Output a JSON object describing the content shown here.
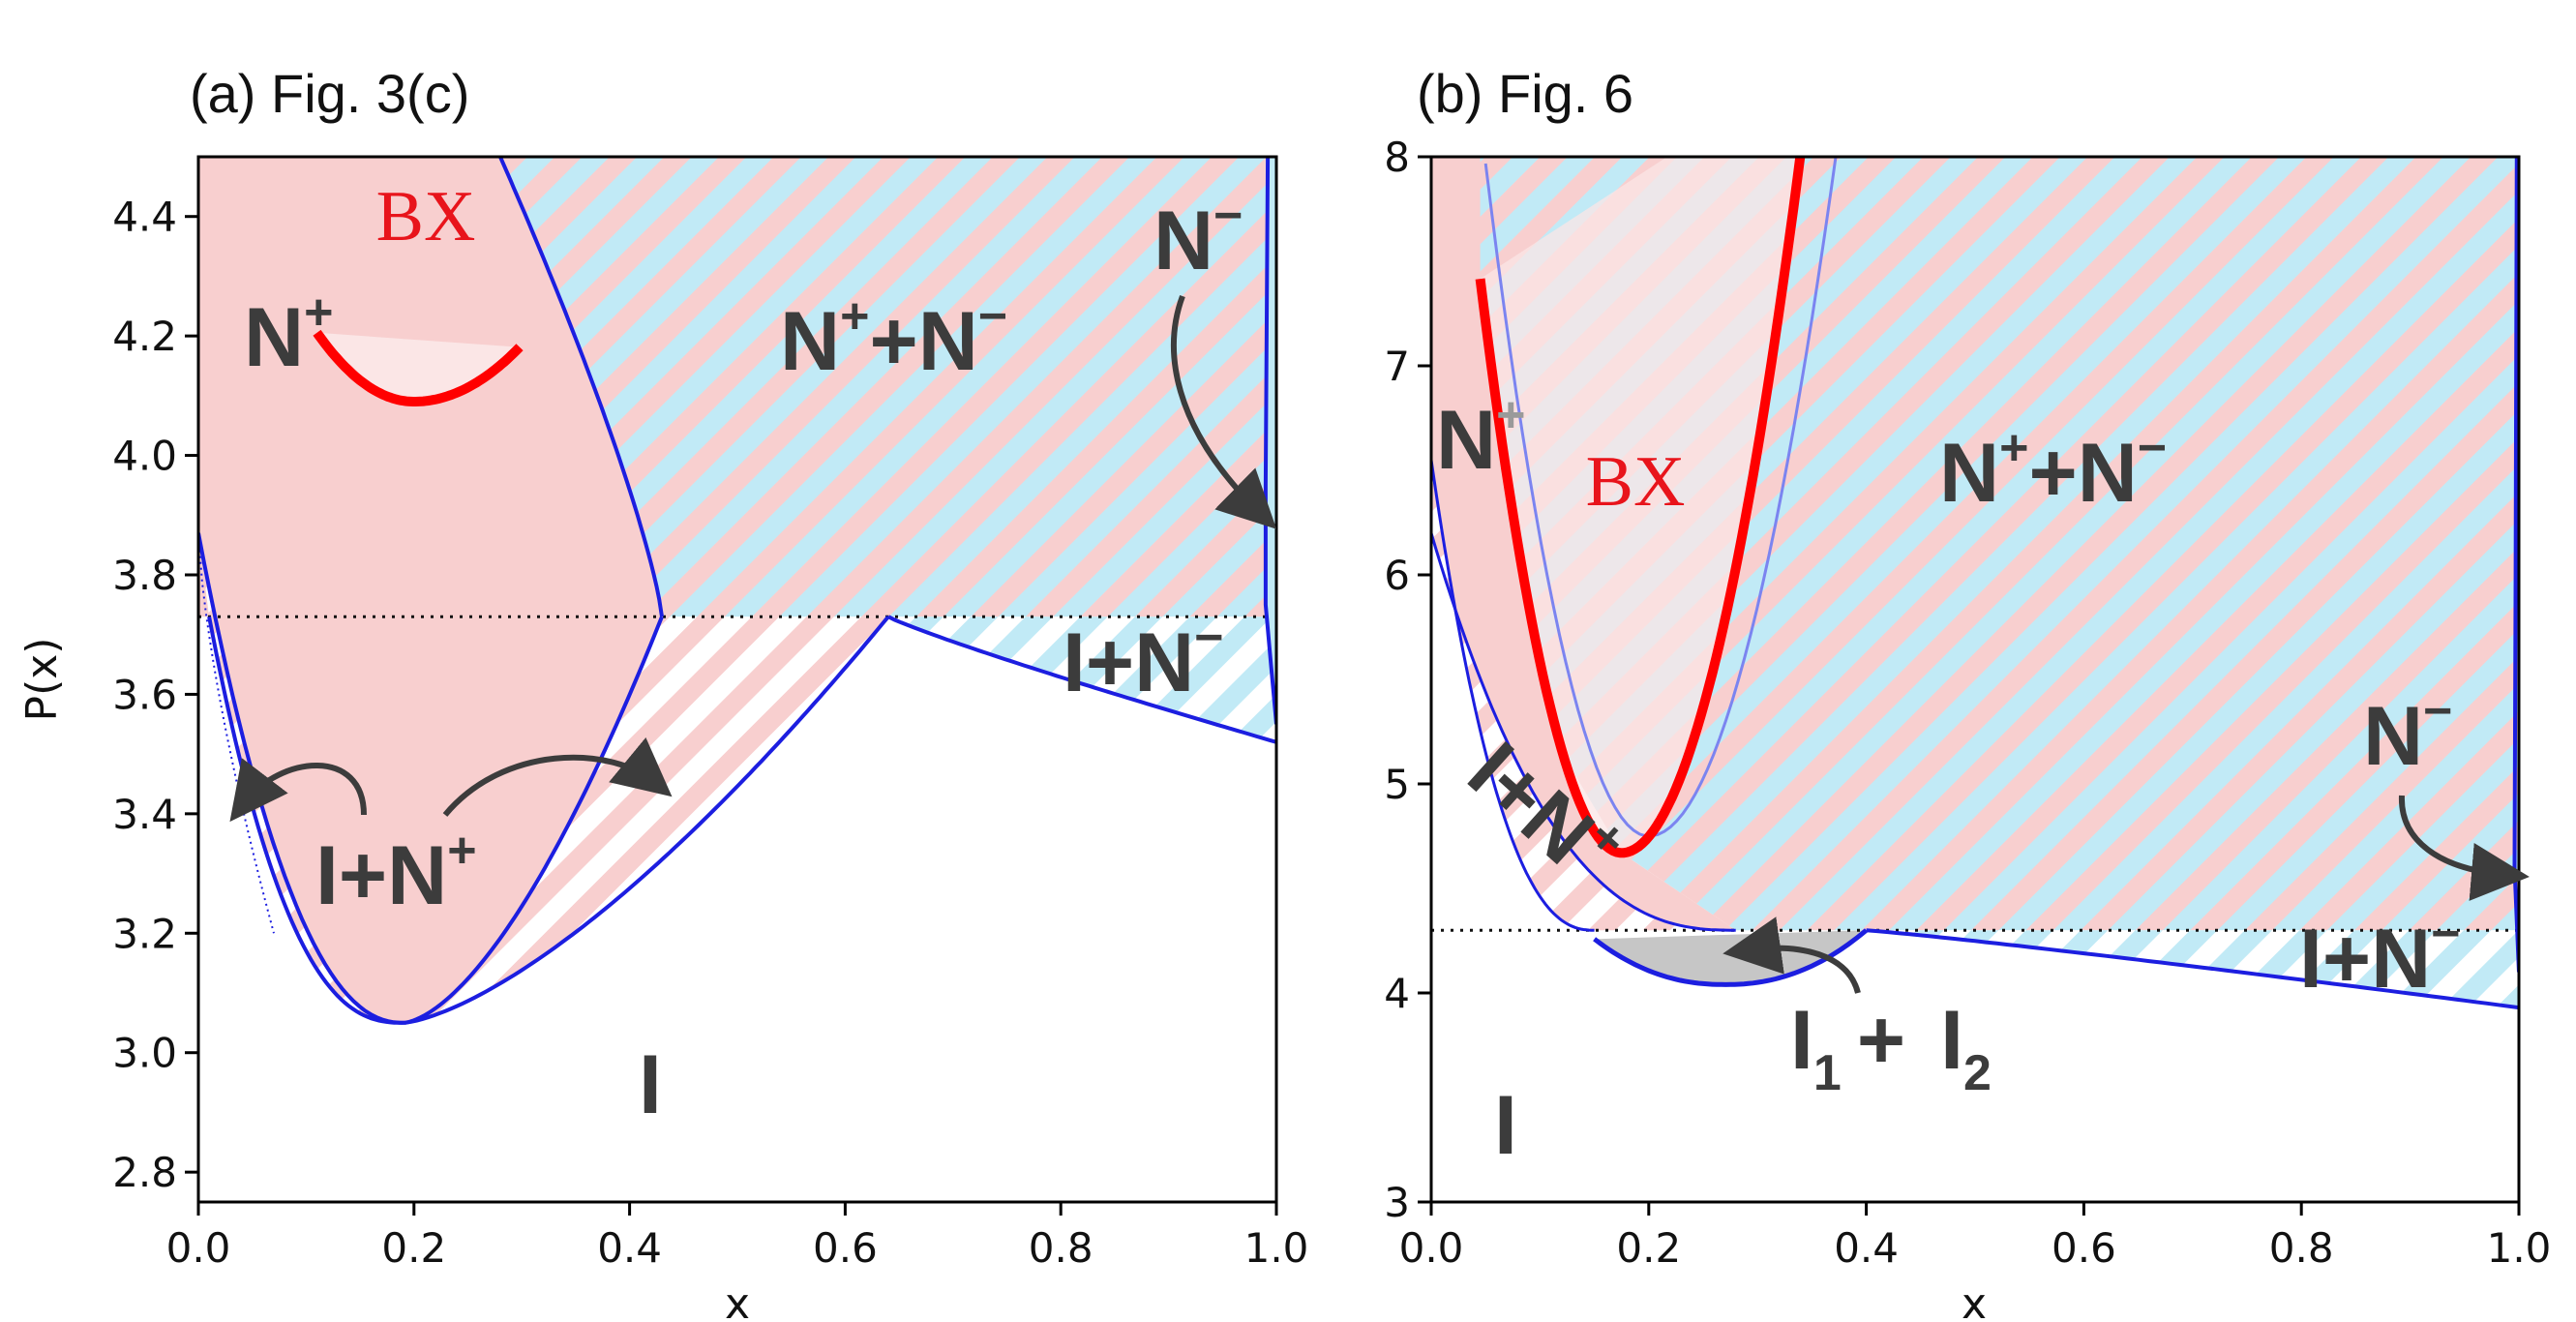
{
  "colors": {
    "pink": "#f8cfcf",
    "light_pink": "#fbe6e6",
    "cyan": "#c1eaf6",
    "blue_line": "#1c1ee0",
    "red_line": "#ff0000",
    "gray_region": "#c6c6c6",
    "label": "#3c3c3c",
    "bx": "#e8141b"
  },
  "chart_data": [
    {
      "type": "area",
      "title": "(a) Fig. 3(c)",
      "xlabel": "x",
      "ylabel": "P(x)",
      "xlim": [
        0.0,
        1.0
      ],
      "ylim": [
        2.75,
        4.5
      ],
      "xticks": [
        "0.0",
        "0.2",
        "0.4",
        "0.6",
        "0.8",
        "1.0"
      ],
      "yticks": [
        "2.8",
        "3.0",
        "3.2",
        "3.4",
        "3.6",
        "3.8",
        "4.0",
        "4.2",
        "4.4"
      ],
      "dotted_line_y": 3.73,
      "bx_boundary_min": {
        "x": 0.2,
        "y": 4.09
      },
      "cusp_points": [
        {
          "x": 0.43,
          "y": 3.73
        },
        {
          "x": 0.64,
          "y": 3.73
        }
      ],
      "minimum": {
        "x": 0.19,
        "y": 3.05
      },
      "right_edge_low_y": 3.52,
      "annotations": {
        "bx": "BX",
        "n_plus": "N",
        "n_plus_sup": "+",
        "coexist": "N",
        "coexist_sup1": "+",
        "coexist_plus": "+",
        "coexist_n": "N",
        "coexist_sup2": "−",
        "n_minus": "N",
        "n_minus_sup": "−",
        "i_n_minus": "I+N",
        "i_n_minus_sup": "−",
        "i_n_plus": "I+N",
        "i_n_plus_sup": "+",
        "isotropic": "I"
      }
    },
    {
      "type": "area",
      "title": "(b) Fig. 6",
      "xlabel": "x",
      "ylabel": "",
      "xlim": [
        0.0,
        1.0
      ],
      "ylim": [
        3.0,
        8.0
      ],
      "xticks": [
        "0.0",
        "0.2",
        "0.4",
        "0.6",
        "0.8",
        "1.0"
      ],
      "yticks": [
        "3",
        "4",
        "5",
        "6",
        "7",
        "8"
      ],
      "dotted_line_y": 4.3,
      "bx_boundary_min": {
        "x": 0.175,
        "y": 4.67
      },
      "triple_region": {
        "x_from": 0.15,
        "x_to": 0.4,
        "y_top": 4.3,
        "y_min": 4.04
      },
      "right_edge_low_y": 3.93,
      "annotations": {
        "bx": "BX",
        "n_plus": "N",
        "n_plus_sup": "+",
        "coexist": "N",
        "coexist_sup1": "+",
        "coexist_plus": "+",
        "coexist_n": "N",
        "coexist_sup2": "−",
        "n_minus": "N",
        "n_minus_sup": "−",
        "i_n_minus": "I+N",
        "i_n_minus_sup": "−",
        "i_n_plus": "I+N",
        "i_n_plus_sup": "+",
        "i1": "I",
        "i1_sub": "1",
        "i_plus": "+",
        "i2": "I",
        "i2_sub": "2",
        "isotropic": "I"
      }
    }
  ]
}
